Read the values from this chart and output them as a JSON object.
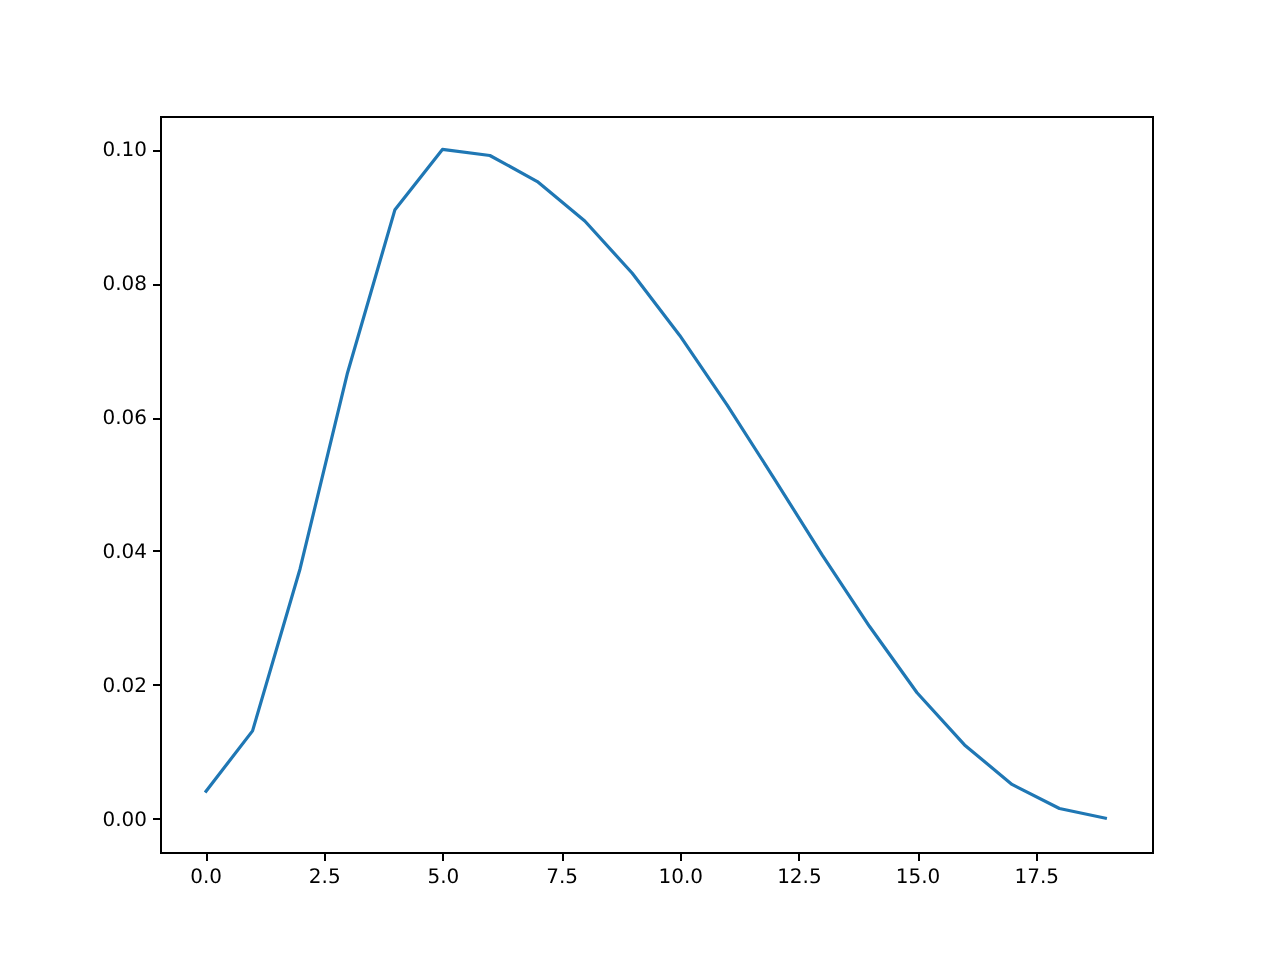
{
  "chart_data": {
    "type": "line",
    "x": [
      0,
      1,
      2,
      3,
      4,
      5,
      6,
      7,
      8,
      9,
      10,
      11,
      12,
      13,
      14,
      15,
      16,
      17,
      18,
      19
    ],
    "series": [
      {
        "color": "#1f77b4",
        "values": [
          0.0039,
          0.0131,
          0.0373,
          0.0666,
          0.091,
          0.1,
          0.0991,
          0.0952,
          0.0893,
          0.0815,
          0.0722,
          0.0618,
          0.0507,
          0.0394,
          0.0287,
          0.0188,
          0.011,
          0.0051,
          0.0015,
          0.0
        ]
      }
    ],
    "xlim": [
      -0.95,
      19.95
    ],
    "xticks": [
      {
        "value": 0,
        "label": "0.0"
      },
      {
        "value": 2.5,
        "label": "2.5"
      },
      {
        "value": 5,
        "label": "5.0"
      },
      {
        "value": 7.5,
        "label": "7.5"
      },
      {
        "value": 10,
        "label": "10.0"
      },
      {
        "value": 12.5,
        "label": "12.5"
      },
      {
        "value": 15,
        "label": "15.0"
      },
      {
        "value": 17.5,
        "label": "17.5"
      }
    ],
    "ylim": [
      -0.005,
      0.105
    ],
    "yticks": [
      {
        "value": 0,
        "label": "0.00"
      },
      {
        "value": 0.02,
        "label": "0.02"
      },
      {
        "value": 0.04,
        "label": "0.04"
      },
      {
        "value": 0.06,
        "label": "0.06"
      },
      {
        "value": 0.08,
        "label": "0.08"
      },
      {
        "value": 0.1,
        "label": "0.10"
      }
    ],
    "grid": false,
    "marker": "none",
    "line_style": "solid"
  }
}
